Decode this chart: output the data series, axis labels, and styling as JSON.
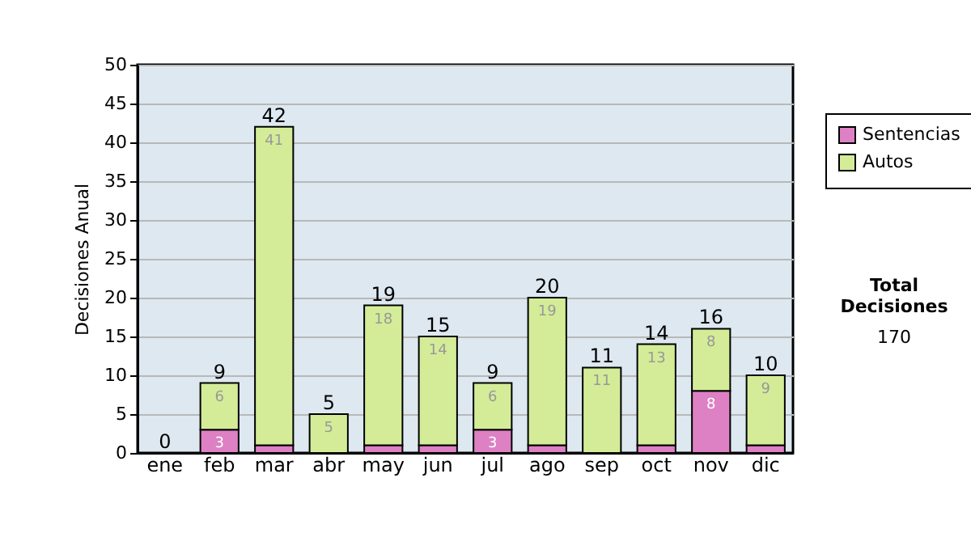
{
  "chart_data": {
    "type": "bar",
    "stacked": true,
    "ylabel": "Decisiones Anual",
    "categories": [
      "ene",
      "feb",
      "mar",
      "abr",
      "may",
      "jun",
      "jul",
      "ago",
      "sep",
      "oct",
      "nov",
      "dic"
    ],
    "series": [
      {
        "name": "Sentencias",
        "color": "#dd80c4",
        "values": [
          0,
          3,
          1,
          0,
          1,
          1,
          3,
          1,
          0,
          1,
          8,
          1
        ],
        "value_labels": [
          null,
          "3",
          null,
          null,
          null,
          null,
          "3",
          null,
          null,
          null,
          "8",
          null
        ]
      },
      {
        "name": "Autos",
        "color": "#d4ec98",
        "values": [
          0,
          6,
          41,
          5,
          18,
          14,
          6,
          19,
          11,
          13,
          8,
          9
        ],
        "value_labels": [
          null,
          "6",
          "41",
          "5",
          "18",
          "14",
          "6",
          "19",
          "11",
          "13",
          "8",
          "9"
        ]
      }
    ],
    "totals": [
      "0",
      "9",
      "42",
      "5",
      "19",
      "15",
      "9",
      "20",
      "11",
      "14",
      "16",
      "10"
    ],
    "ylim": [
      0,
      50
    ],
    "yticks": [
      0,
      5,
      10,
      15,
      20,
      25,
      30,
      35,
      40,
      45,
      50
    ],
    "grid": "y",
    "legend": "right",
    "annotations": [
      "Total Decisiones",
      "170"
    ]
  }
}
